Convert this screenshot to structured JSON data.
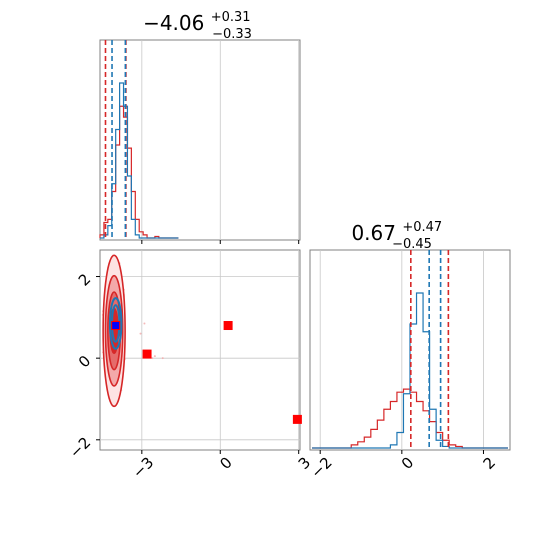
{
  "chart_data": {
    "type": "corner",
    "colors": {
      "red": "#d62728",
      "blue": "#1f77b4",
      "pale_red": "#f3a9a9",
      "square_red": "#ff0000",
      "square_blue": "#0000ff",
      "grid": "#c8c8c8",
      "frame": "#808080"
    },
    "grid": true,
    "titles": {
      "p0": {
        "center": "−4.06",
        "upper": "+0.31",
        "lower": "−0.33"
      },
      "p1": {
        "center": "0.67",
        "upper": "+0.47",
        "lower": "−0.45"
      }
    },
    "axes": {
      "p0_range": [
        -4.6,
        3.05
      ],
      "p1_range": [
        -2.25,
        2.65
      ],
      "p0_ticks": [
        {
          "value": -3,
          "label": "−3"
        },
        {
          "value": 0,
          "label": "0"
        },
        {
          "value": 3,
          "label": "3"
        }
      ],
      "p1_ticks": [
        {
          "value": -2,
          "label": "−2"
        },
        {
          "value": 0,
          "label": "0"
        },
        {
          "value": 2,
          "label": "2"
        }
      ]
    },
    "marginal_p0": {
      "bin_start": -4.6,
      "bin_width": 0.15,
      "red_counts": [
        0.02,
        0.1,
        0.12,
        0.3,
        0.6,
        0.85,
        0.78,
        0.58,
        0.3,
        0.12,
        0.04,
        0.02,
        0,
        0,
        0.01,
        0,
        0,
        0,
        0,
        0
      ],
      "blue_counts": [
        0,
        0.02,
        0.08,
        0.35,
        0.7,
        1.0,
        0.85,
        0.4,
        0.12,
        0.02,
        0,
        0,
        0,
        0,
        0,
        0,
        0,
        0,
        0,
        0
      ],
      "red_quantiles": [
        -4.39,
        -3.61
      ],
      "blue_quantiles": [
        -4.14,
        -3.63
      ]
    },
    "marginal_p1": {
      "bin_start": -2.2,
      "bin_width": 0.16,
      "red_counts": [
        0,
        0,
        0,
        0,
        0,
        0,
        0.02,
        0.04,
        0.07,
        0.12,
        0.18,
        0.25,
        0.3,
        0.36,
        0.38,
        0.36,
        0.3,
        0.24,
        0.17,
        0.1,
        0.05,
        0.02,
        0.01,
        0,
        0,
        0,
        0,
        0,
        0,
        0
      ],
      "blue_counts": [
        0,
        0,
        0,
        0,
        0,
        0,
        0,
        0,
        0,
        0,
        0,
        0,
        0.02,
        0.1,
        0.35,
        0.8,
        1.0,
        0.75,
        0.25,
        0.05,
        0.01,
        0,
        0,
        0,
        0,
        0,
        0,
        0,
        0,
        0
      ],
      "red_quantiles": [
        0.22,
        1.14
      ],
      "blue_quantiles": [
        0.67,
        0.95
      ]
    },
    "joint": {
      "center": [
        -4.06,
        0.67
      ],
      "red_contours": [
        {
          "rx": 0.42,
          "ry": 1.85
        },
        {
          "rx": 0.33,
          "ry": 1.35
        },
        {
          "rx": 0.24,
          "ry": 0.95
        },
        {
          "rx": 0.15,
          "ry": 0.55
        }
      ],
      "blue_contours": [
        {
          "rx": 0.22,
          "ry": 0.62
        },
        {
          "rx": 0.14,
          "ry": 0.45
        }
      ],
      "blue_center": [
        -4.0,
        0.85
      ],
      "outlier_points": [
        [
          -2.7,
          0.1
        ],
        [
          -2.6,
          0.0
        ],
        [
          -2.5,
          0.05
        ],
        [
          -2.2,
          0.0
        ],
        [
          -2.9,
          0.85
        ],
        [
          -3.05,
          0.6
        ]
      ]
    },
    "squares": {
      "red": [
        [
          -4.0,
          0.8
        ],
        [
          -2.8,
          0.1
        ],
        [
          0.3,
          0.8
        ],
        [
          2.95,
          -1.5
        ]
      ],
      "blue": [
        [
          -4.0,
          0.8
        ]
      ]
    }
  }
}
